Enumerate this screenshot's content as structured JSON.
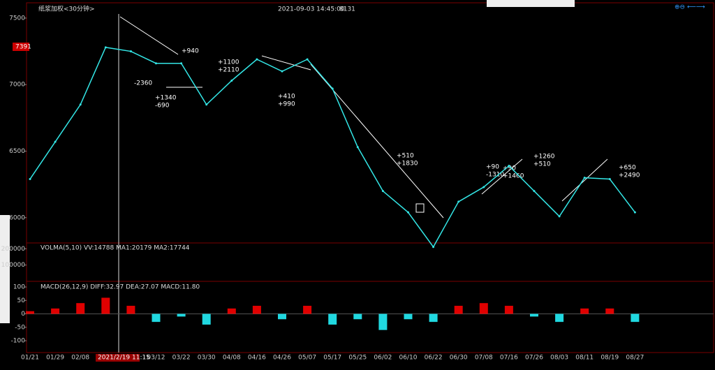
{
  "header": {
    "title": "纸浆加权<30分钟>",
    "cursor_time": "2021-09-03 14:45:00",
    "cursor_value": "8131",
    "cursor_date": "2021/2/19 11:15",
    "last_price": "7391"
  },
  "chart_data": [
    {
      "type": "line",
      "categories": [
        "01/21",
        "01/29",
        "02/08",
        null,
        null,
        "03/12",
        "03/22",
        "03/30",
        "04/08",
        "04/16",
        "04/26",
        "05/07",
        "05/17",
        "05/25",
        "06/02",
        "06/10",
        "06/22",
        "06/30",
        "07/08",
        "07/16",
        "07/26",
        "08/03",
        "08/11",
        "08/19",
        "08/27"
      ],
      "series": [
        {
          "name": "Price",
          "color": "#33e6e6",
          "values": [
            6290,
            6570,
            6850,
            7280,
            7250,
            7160,
            7160,
            6850,
            7030,
            7190,
            7100,
            7190,
            6970,
            6530,
            6200,
            6040,
            5780,
            6120,
            6230,
            6390,
            6200,
            6010,
            6300,
            6290,
            6040
          ]
        }
      ],
      "ylim": [
        5810,
        7615
      ],
      "yticks": [
        6000,
        6500,
        7000,
        7500
      ],
      "annotations": [
        "-2360",
        "+940",
        "+1100",
        "+2110",
        "+1340",
        "-690",
        "+410",
        "+990",
        "+510",
        "+1830",
        "+90",
        "-1310",
        "+90",
        "+1460",
        "+1260",
        "+510",
        "+650",
        "+2490"
      ]
    },
    {
      "type": "volume",
      "title": "VOLMA(5,10)  VV:14788 MA1:20179 MA2:17744",
      "ylim": [
        0,
        236000
      ],
      "yticks": [
        100000,
        200000
      ]
    },
    {
      "type": "bar",
      "title": "MACD(26,12,9)  DIFF:32.97 DEA:27.07 MACD:11.80",
      "ylim": [
        -144,
        121
      ],
      "yticks": [
        -100,
        -50,
        0,
        50,
        100
      ],
      "series": [
        {
          "name": "MACD",
          "color": "#e00000",
          "negative_color": "#20d8e0",
          "values": [
            10,
            20,
            40,
            60,
            30,
            -30,
            -10,
            -40,
            20,
            30,
            -20,
            30,
            -40,
            -20,
            -60,
            -20,
            -30,
            30,
            40,
            30,
            -10,
            -30,
            20,
            20,
            -30
          ]
        }
      ]
    }
  ]
}
